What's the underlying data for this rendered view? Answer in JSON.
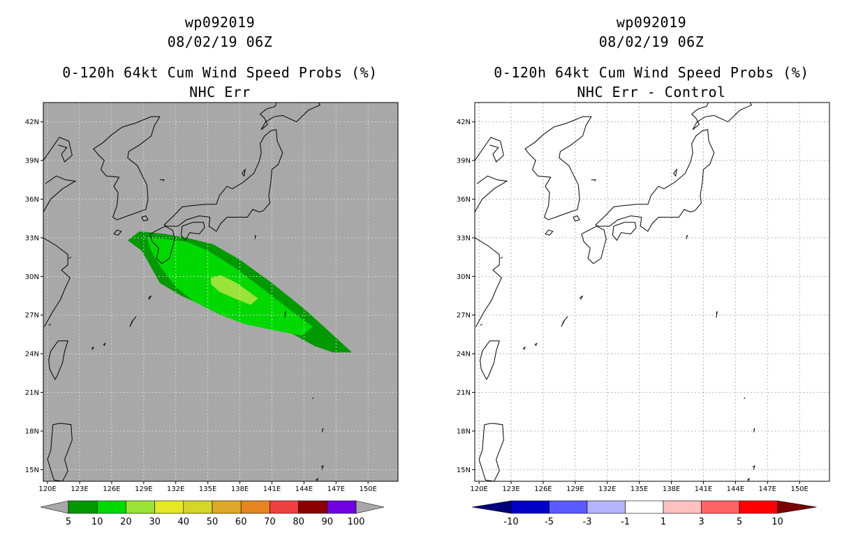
{
  "left": {
    "storm_id": "wp092019",
    "datetime": "08/02/19 06Z",
    "product": "0-120h 64kt Cum Wind Speed Probs (%)",
    "subtitle": "NHC Err",
    "background_color": "#a8a8a8",
    "colorbar": {
      "colors": [
        "#009900",
        "#00d900",
        "#9be339",
        "#e8e825",
        "#d4d429",
        "#e0a82b",
        "#e8841f",
        "#ef4040",
        "#8c0000",
        "#7000e0"
      ],
      "end_arrow_color": "#a8a8a8",
      "labels": [
        "5",
        "10",
        "20",
        "30",
        "40",
        "50",
        "60",
        "70",
        "80",
        "90",
        "100"
      ]
    }
  },
  "right": {
    "storm_id": "wp092019",
    "datetime": "08/02/19 06Z",
    "product": "0-120h 64kt Cum Wind Speed Probs (%)",
    "subtitle": "NHC Err - Control",
    "background_color": "#ffffff",
    "colorbar": {
      "colors": [
        "#0000c8",
        "#5a5aff",
        "#b4b4ff",
        "#ffffff",
        "#ffc0c0",
        "#ff6464",
        "#ff0000"
      ],
      "left_arrow_color": "#00007a",
      "right_arrow_color": "#7a0000",
      "labels": [
        "-10",
        "-5",
        "-3",
        "-1",
        "1",
        "3",
        "5",
        "10"
      ]
    }
  },
  "axes": {
    "lat_labels": [
      "42N",
      "39N",
      "36N",
      "33N",
      "30N",
      "27N",
      "24N",
      "21N",
      "18N",
      "15N"
    ],
    "lat_values": [
      42,
      39,
      36,
      33,
      30,
      27,
      24,
      21,
      18,
      15
    ],
    "lon_labels": [
      "120E",
      "123E",
      "126E",
      "129E",
      "132E",
      "135E",
      "138E",
      "141E",
      "144E",
      "147E",
      "150E"
    ],
    "lon_values": [
      120,
      123,
      126,
      129,
      132,
      135,
      138,
      141,
      144,
      147,
      150
    ],
    "lon_range": [
      119.6,
      152.8
    ],
    "lat_range": [
      14.1,
      43.5
    ]
  },
  "probability_contours": [
    {
      "level": "5-10",
      "color": "#009900",
      "points": [
        [
          127.5,
          32.8
        ],
        [
          128.6,
          33.5
        ],
        [
          131,
          33.3
        ],
        [
          133,
          33
        ],
        [
          135.5,
          32.5
        ],
        [
          138,
          31.3
        ],
        [
          141,
          29.5
        ],
        [
          144,
          27.5
        ],
        [
          146,
          26
        ],
        [
          148.5,
          24.1
        ],
        [
          146.7,
          24.1
        ],
        [
          145,
          24.6
        ],
        [
          143,
          25.5
        ],
        [
          141,
          26.2
        ],
        [
          138,
          26.9
        ],
        [
          135,
          27.6
        ],
        [
          132.5,
          28.5
        ],
        [
          130.5,
          29.5
        ],
        [
          129.5,
          31
        ],
        [
          128.8,
          32
        ]
      ]
    },
    {
      "level": "10-20",
      "color": "#00d900",
      "points": [
        [
          129.3,
          33
        ],
        [
          131,
          32.9
        ],
        [
          133,
          32.7
        ],
        [
          135,
          32
        ],
        [
          137.5,
          30.7
        ],
        [
          140.2,
          29
        ],
        [
          142.4,
          27.6
        ],
        [
          144.8,
          26.1
        ],
        [
          143.8,
          25.4
        ],
        [
          141.3,
          25.8
        ],
        [
          138.5,
          26.3
        ],
        [
          136.2,
          27
        ],
        [
          133.8,
          28
        ],
        [
          132,
          29.2
        ],
        [
          130.6,
          30.7
        ],
        [
          129.7,
          32
        ]
      ]
    },
    {
      "level": "20-30",
      "color": "#9be339",
      "points": [
        [
          135.3,
          29.9
        ],
        [
          136.2,
          30.1
        ],
        [
          137.7,
          29.5
        ],
        [
          138.7,
          28.9
        ],
        [
          139.7,
          28.3
        ],
        [
          139,
          27.8
        ],
        [
          137.5,
          28.3
        ],
        [
          136.1,
          28.8
        ],
        [
          135.3,
          29.4
        ]
      ]
    }
  ],
  "coastline_labels": []
}
